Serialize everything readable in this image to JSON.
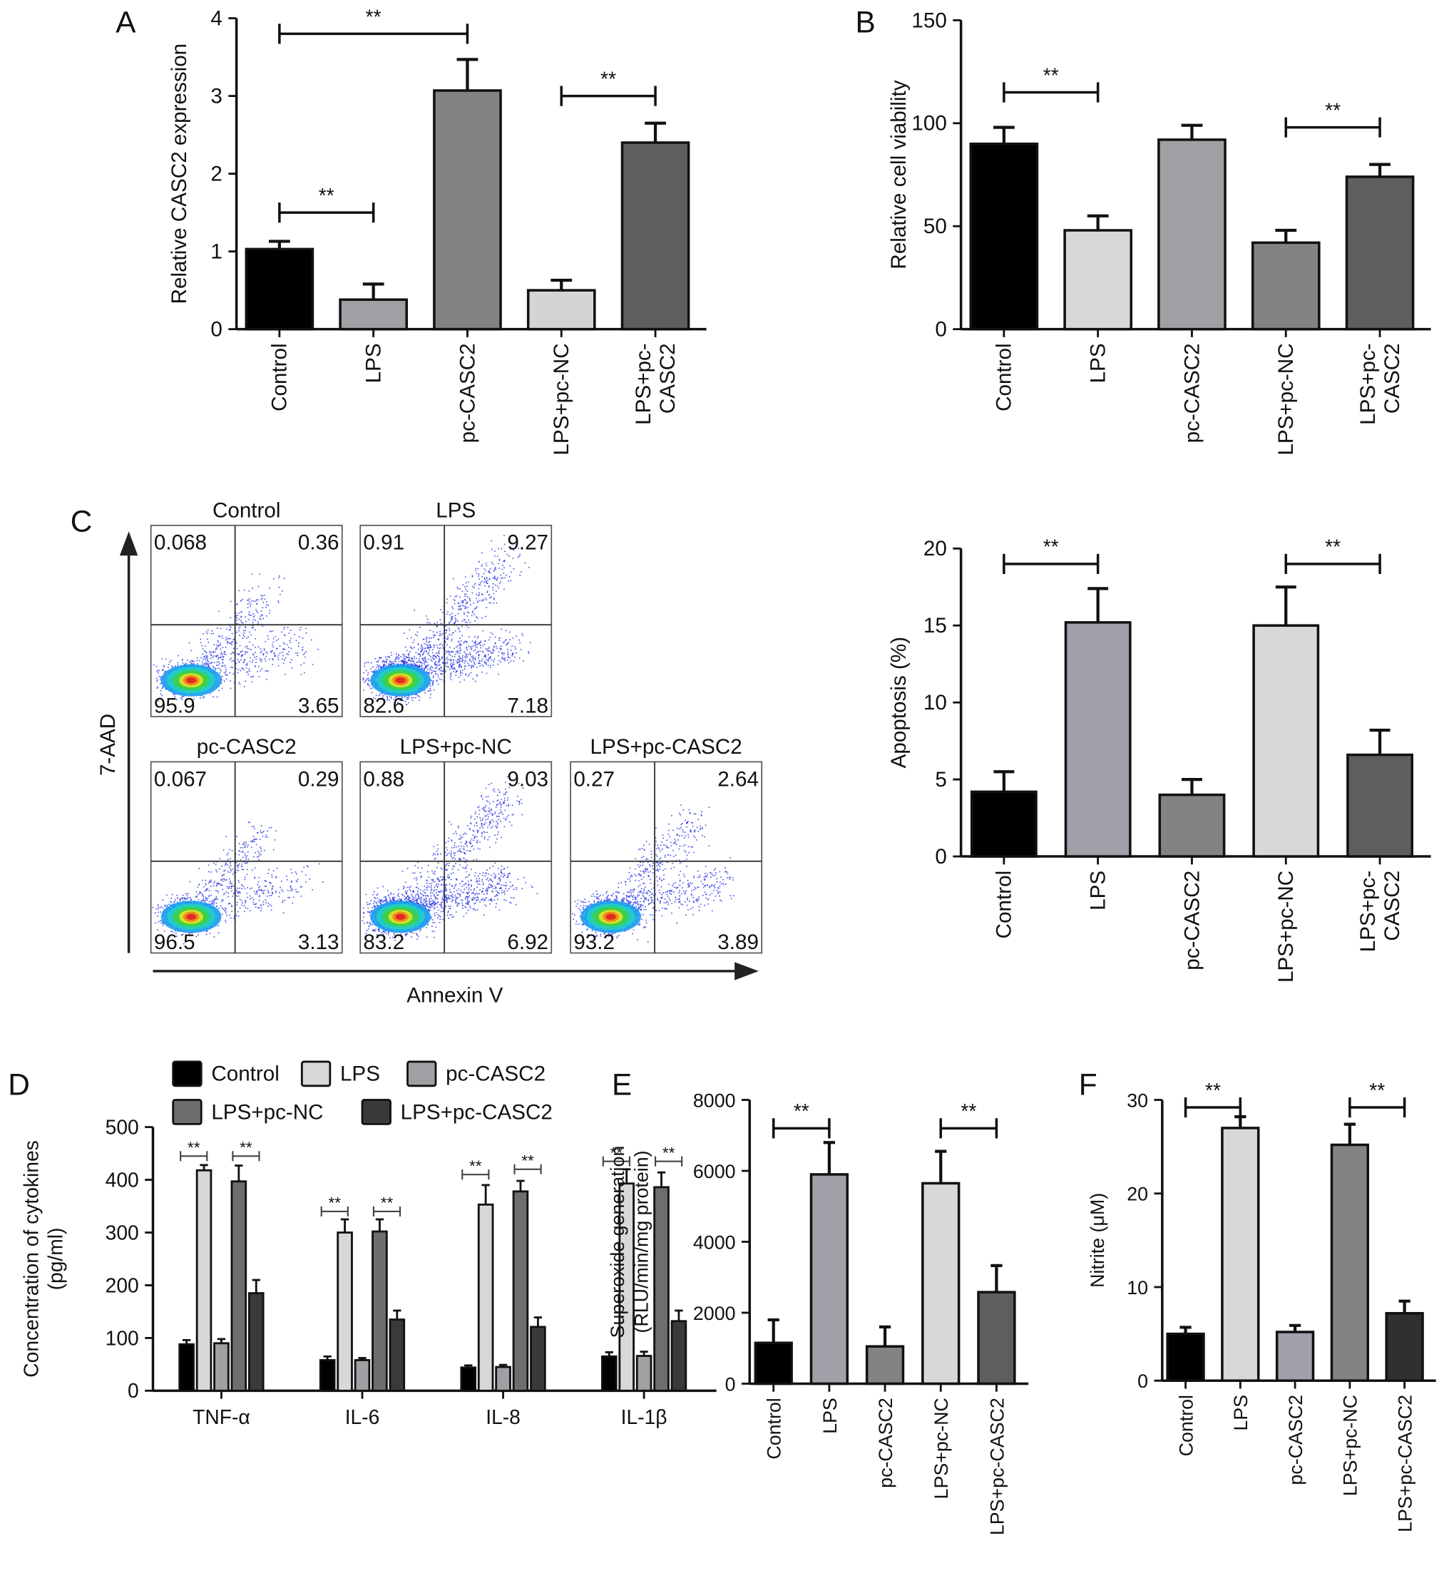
{
  "panel_letters": [
    "A",
    "B",
    "C",
    "D",
    "E",
    "F"
  ],
  "chart_data": [
    {
      "id": "A",
      "type": "bar",
      "title": "",
      "ylabel": "Relative CASC2 expression",
      "xlabel": "",
      "ylim": [
        0,
        4
      ],
      "yticks": [
        0,
        1,
        2,
        3,
        4
      ],
      "categories": [
        [
          "Control"
        ],
        [
          "LPS"
        ],
        [
          "pc-CASC2"
        ],
        [
          "LPS+pc-NC"
        ],
        [
          "LPS+pc-",
          "CASC2"
        ]
      ],
      "values": [
        1.03,
        0.38,
        3.07,
        0.5,
        2.4
      ],
      "errors": [
        0.1,
        0.2,
        0.4,
        0.13,
        0.25
      ],
      "colors": [
        "#000000",
        "#a0a0a4",
        "#838383",
        "#d4d4d4",
        "#5e5e5e"
      ],
      "significance": [
        {
          "from": 0,
          "to": 1,
          "y": 1.5,
          "label": "**"
        },
        {
          "from": 0,
          "to": 2,
          "y": 3.8,
          "label": "**"
        },
        {
          "from": 3,
          "to": 4,
          "y": 3.0,
          "label": "**"
        }
      ]
    },
    {
      "id": "B",
      "type": "bar",
      "title": "",
      "ylabel": "Relative cell viability",
      "xlabel": "",
      "ylim": [
        0,
        150
      ],
      "yticks": [
        0,
        50,
        100,
        150
      ],
      "categories": [
        [
          "Control"
        ],
        [
          "LPS"
        ],
        [
          "pc-CASC2"
        ],
        [
          "LPS+pc-NC"
        ],
        [
          "LPS+pc-",
          "CASC2"
        ]
      ],
      "values": [
        90,
        48,
        92,
        42,
        74
      ],
      "errors": [
        8,
        7,
        7,
        6,
        6
      ],
      "colors": [
        "#000000",
        "#d8d8d8",
        "#a0a0a4",
        "#838383",
        "#5e5e5e"
      ],
      "significance": [
        {
          "from": 0,
          "to": 1,
          "y": 115,
          "label": "**"
        },
        {
          "from": 3,
          "to": 4,
          "y": 98,
          "label": "**"
        }
      ]
    },
    {
      "id": "C",
      "type": "bar",
      "title": "",
      "ylabel": "Apoptosis (%)",
      "xlabel": "",
      "ylim": [
        0,
        20
      ],
      "yticks": [
        0,
        5,
        10,
        15,
        20
      ],
      "categories": [
        [
          "Control"
        ],
        [
          "LPS"
        ],
        [
          "pc-CASC2"
        ],
        [
          "LPS+pc-NC"
        ],
        [
          "LPS+pc-",
          "CASC2"
        ]
      ],
      "values": [
        4.2,
        15.2,
        4.0,
        15.0,
        6.6
      ],
      "errors": [
        1.3,
        2.2,
        1.0,
        2.5,
        1.6
      ],
      "colors": [
        "#000000",
        "#a0a0a8",
        "#838383",
        "#d8d8d8",
        "#5e5e5e"
      ],
      "significance": [
        {
          "from": 0,
          "to": 1,
          "y": 19.0,
          "label": "**"
        },
        {
          "from": 3,
          "to": 4,
          "y": 19.0,
          "label": "**"
        }
      ]
    },
    {
      "id": "D",
      "type": "bar",
      "title": "",
      "ylabel": [
        "Concentration of cytokines",
        "(pg/ml)"
      ],
      "xlabel": "",
      "ylim": [
        0,
        500
      ],
      "yticks": [
        0,
        100,
        200,
        300,
        400,
        500
      ],
      "categories": [
        "TNF-α",
        "IL-6",
        "IL-8",
        "IL-1β"
      ],
      "legend": {
        "placement": "top"
      },
      "series": [
        {
          "name": "Control",
          "color": "#000000",
          "values": [
            88,
            58,
            44,
            65
          ],
          "errors": [
            8,
            7,
            4,
            8
          ]
        },
        {
          "name": "LPS",
          "color": "#d8d8d8",
          "values": [
            418,
            300,
            353,
            393
          ],
          "errors": [
            10,
            25,
            37,
            27
          ]
        },
        {
          "name": "pc-CASC2",
          "color": "#a0a0a4",
          "values": [
            90,
            58,
            45,
            66
          ],
          "errors": [
            8,
            4,
            4,
            8
          ]
        },
        {
          "name": "LPS+pc-NC",
          "color": "#6e6e6e",
          "values": [
            397,
            302,
            378,
            386
          ],
          "errors": [
            30,
            23,
            20,
            28
          ]
        },
        {
          "name": "LPS+pc-CASC2",
          "color": "#3a3a3a",
          "values": [
            185,
            135,
            121,
            132
          ],
          "errors": [
            25,
            17,
            18,
            20
          ]
        }
      ],
      "significance": [
        {
          "group": 0,
          "from": 0,
          "to": 1,
          "y": 445,
          "label": "**"
        },
        {
          "group": 0,
          "from": 3,
          "to": 4,
          "y": 445,
          "label": "**"
        },
        {
          "group": 1,
          "from": 0,
          "to": 1,
          "y": 340,
          "label": "**"
        },
        {
          "group": 1,
          "from": 3,
          "to": 4,
          "y": 340,
          "label": "**"
        },
        {
          "group": 2,
          "from": 0,
          "to": 1,
          "y": 410,
          "label": "**"
        },
        {
          "group": 2,
          "from": 3,
          "to": 4,
          "y": 420,
          "label": "**"
        },
        {
          "group": 3,
          "from": 0,
          "to": 1,
          "y": 435,
          "label": "**"
        },
        {
          "group": 3,
          "from": 3,
          "to": 4,
          "y": 435,
          "label": "**"
        }
      ]
    },
    {
      "id": "E",
      "type": "bar",
      "title": "",
      "ylabel": [
        "Superoxide generation",
        "(RLU/min/mg protein)"
      ],
      "xlabel": "",
      "ylim": [
        0,
        8000
      ],
      "yticks": [
        0,
        2000,
        4000,
        6000,
        8000
      ],
      "categories": [
        [
          "Control"
        ],
        [
          "LPS"
        ],
        [
          "pc-CASC2"
        ],
        [
          "LPS+pc-NC"
        ],
        [
          "LPS+pc-CASC2"
        ]
      ],
      "values": [
        1150,
        5900,
        1050,
        5650,
        2580
      ],
      "errors": [
        650,
        900,
        550,
        900,
        750
      ],
      "colors": [
        "#000000",
        "#a0a0a8",
        "#838383",
        "#d8d8d8",
        "#5e5e5e"
      ],
      "significance": [
        {
          "from": 0,
          "to": 1,
          "y": 7200,
          "label": "**"
        },
        {
          "from": 3,
          "to": 4,
          "y": 7200,
          "label": "**"
        }
      ]
    },
    {
      "id": "F",
      "type": "bar",
      "title": "",
      "ylabel": "Nitrite (μM)",
      "xlabel": "",
      "ylim": [
        0,
        30
      ],
      "yticks": [
        0,
        10,
        20,
        30
      ],
      "categories": [
        [
          "Control"
        ],
        [
          "LPS"
        ],
        [
          "pc-CASC2"
        ],
        [
          "LPS+pc-NC"
        ],
        [
          "LPS+pc-CASC2"
        ]
      ],
      "values": [
        5.0,
        27.0,
        5.2,
        25.2,
        7.2
      ],
      "errors": [
        0.7,
        1.2,
        0.7,
        2.2,
        1.3
      ],
      "colors": [
        "#000000",
        "#d8d8d8",
        "#a0a0a8",
        "#838383",
        "#303030"
      ],
      "significance": [
        {
          "from": 0,
          "to": 1,
          "y": 29.2,
          "label": "**"
        },
        {
          "from": 3,
          "to": 4,
          "y": 29.2,
          "label": "**"
        }
      ]
    }
  ],
  "flow": {
    "type": "scatter",
    "xlabel": "Annexin V",
    "ylabel": "7-AAD",
    "plots": [
      {
        "title": "Control",
        "quadrants": {
          "ul": "0.068",
          "ur": "0.36",
          "ll": "95.9",
          "lr": "3.65"
        },
        "intensity": 0.3
      },
      {
        "title": "LPS",
        "quadrants": {
          "ul": "0.91",
          "ur": "9.27",
          "ll": "82.6",
          "lr": "7.18"
        },
        "intensity": 1.0
      },
      {
        "title": "pc-CASC2",
        "quadrants": {
          "ul": "0.067",
          "ur": "0.29",
          "ll": "96.5",
          "lr": "3.13"
        },
        "intensity": 0.25
      },
      {
        "title": "LPS+pc-NC",
        "quadrants": {
          "ul": "0.88",
          "ur": "9.03",
          "ll": "83.2",
          "lr": "6.92"
        },
        "intensity": 1.0
      },
      {
        "title": "LPS+pc-CASC2",
        "quadrants": {
          "ul": "0.27",
          "ur": "2.64",
          "ll": "93.2",
          "lr": "3.89"
        },
        "intensity": 0.5
      }
    ]
  }
}
